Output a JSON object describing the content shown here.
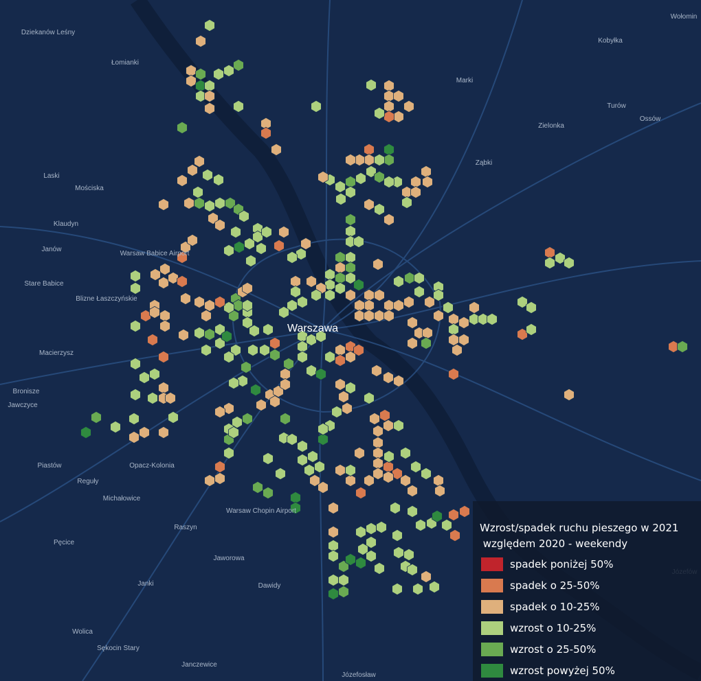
{
  "legend": {
    "title_lines": [
      "Wzrost/spadek ruchu pieszego w 2021",
      " względem 2020 - weekendy"
    ],
    "items": [
      {
        "label": "spadek poniżej 50%",
        "color": "#c0242c"
      },
      {
        "label": "spadek o 25-50%",
        "color": "#d97a4f"
      },
      {
        "label": "spadek o 10-25%",
        "color": "#dfb07c"
      },
      {
        "label": "wzrost o 10-25%",
        "color": "#add07e"
      },
      {
        "label": "wzrost o 25-50%",
        "color": "#6aaa52"
      },
      {
        "label": "wzrost powyżej 50%",
        "color": "#2f8a3f"
      }
    ]
  },
  "map": {
    "places": [
      "Dziekanów Leśny",
      "Łomianki",
      "Marki",
      "Kobyłka",
      "Ząbki",
      "Zielonka",
      "Turów",
      "Ossów",
      "Laski",
      "Mościska",
      "Klaudyn",
      "Janów",
      "Warsaw Babice Airport",
      "Stare Babice",
      "Blizne Łaszczyńskie",
      "Macierzysz",
      "Bronisze",
      "Jawczyce",
      "Piastów",
      "Opacz-Kolonia",
      "Reguły",
      "Michałowice",
      "Raszyn",
      "Pęcice",
      "Jaworowa",
      "Janki",
      "Dawidy",
      "Wolica",
      "Sękocin Stary",
      "Janczewice",
      "Józefosław",
      "Warszawa",
      "Warsaw Chopin Airport",
      "Józefów",
      "Wołomin"
    ]
  }
}
